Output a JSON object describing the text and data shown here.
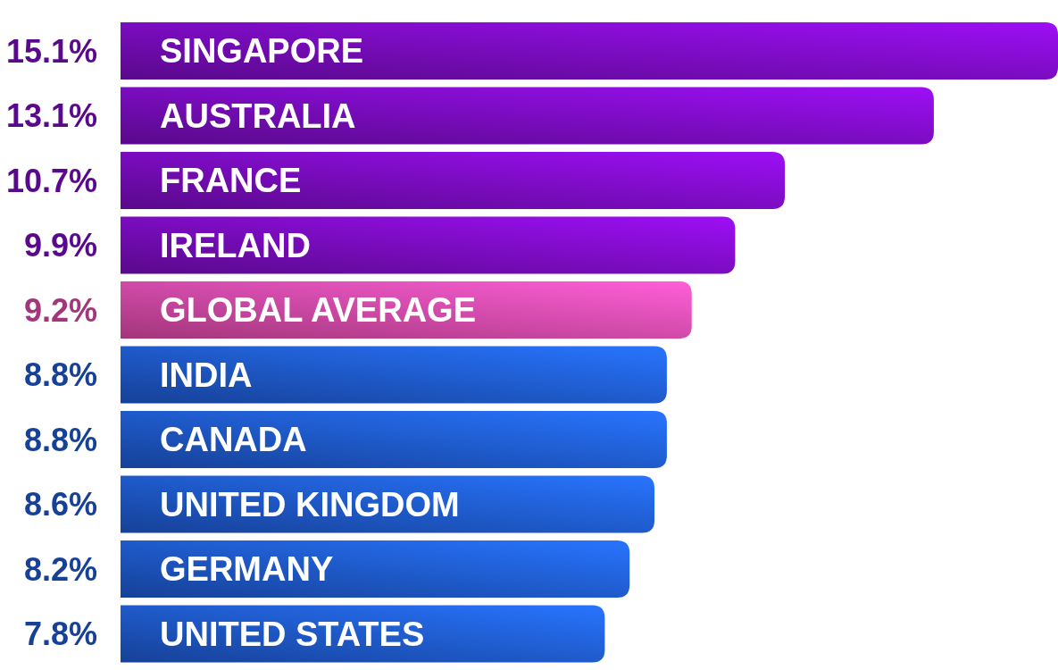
{
  "chart_data": {
    "type": "bar",
    "orientation": "horizontal",
    "value_labels": [
      "15.1%",
      "13.1%",
      "10.7%",
      "9.9%",
      "9.2%",
      "8.8%",
      "8.8%",
      "8.6%",
      "8.2%",
      "7.8%"
    ],
    "categories": [
      "SINGAPORE",
      "AUSTRALIA",
      "FRANCE",
      "IRELAND",
      "GLOBAL AVERAGE",
      "INDIA",
      "CANADA",
      "UNITED KINGDOM",
      "GERMANY",
      "UNITED STATES"
    ],
    "values": [
      15.1,
      13.1,
      10.7,
      9.9,
      9.2,
      8.8,
      8.8,
      8.6,
      8.2,
      7.8
    ],
    "colors": [
      "#7a0cc0",
      "#7a0cc0",
      "#7a0cc0",
      "#7a0cc0",
      "#e04aa8",
      "#1f5ad0",
      "#1f5ad0",
      "#1f5ad0",
      "#1f5ad0",
      "#1f5ad0"
    ]
  }
}
